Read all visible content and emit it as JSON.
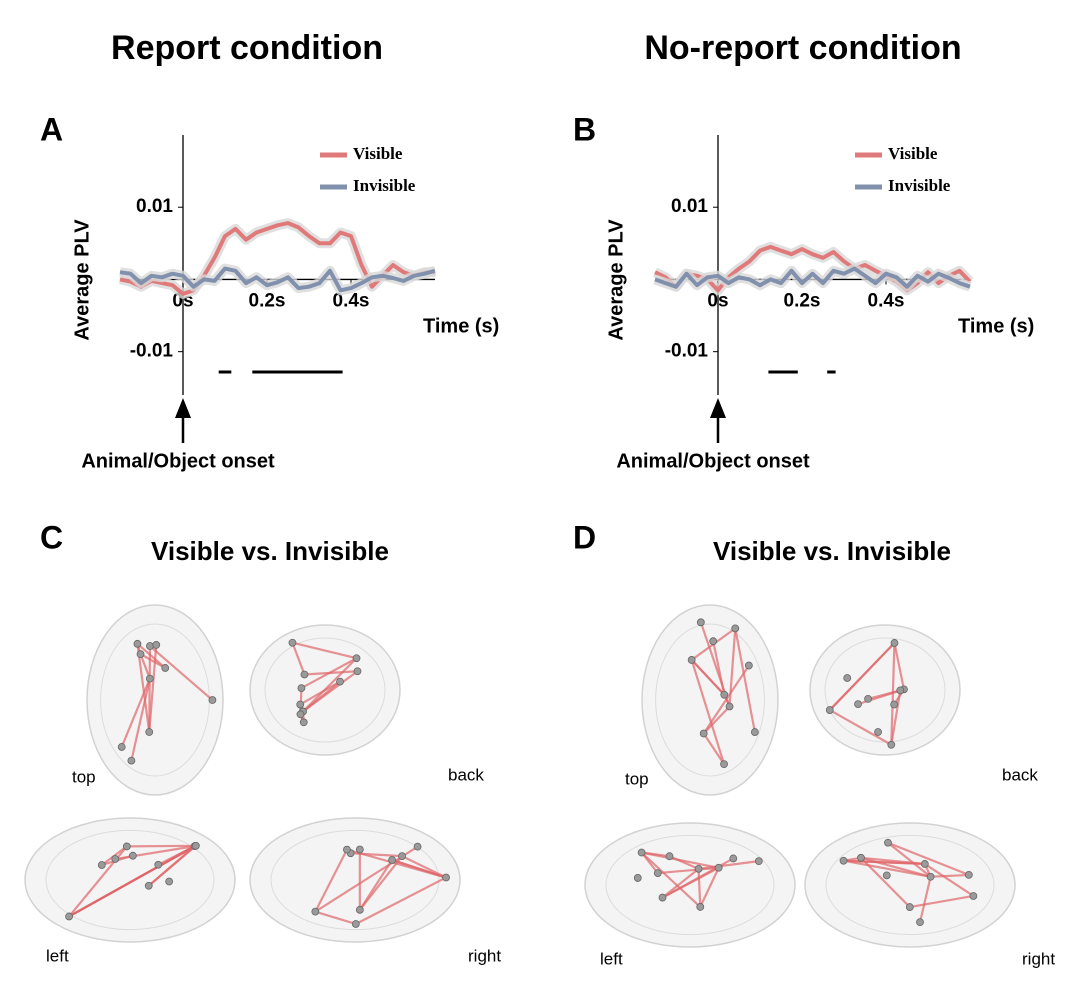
{
  "headings": [
    "Report condition",
    "No-report condition"
  ],
  "chart_data": [
    {
      "type": "line",
      "panel": "A",
      "ylabel": "Average PLV",
      "xlabel": "Time (s)",
      "annotation": "Animal/Object onset",
      "x": [
        -0.15,
        -0.125,
        -0.1,
        -0.075,
        -0.05,
        -0.025,
        0,
        0.025,
        0.05,
        0.075,
        0.1,
        0.125,
        0.15,
        0.175,
        0.2,
        0.225,
        0.25,
        0.275,
        0.3,
        0.325,
        0.35,
        0.375,
        0.4,
        0.425,
        0.45,
        0.475,
        0.5,
        0.525,
        0.55,
        0.575,
        0.6
      ],
      "series": [
        {
          "name": "Visible",
          "color": "#e07a7a",
          "values": [
            0,
            -0.0003,
            -0.001,
            -0.0002,
            -0.0005,
            -0.0008,
            -0.002,
            -0.0015,
            0.0005,
            0.003,
            0.006,
            0.007,
            0.0055,
            0.0065,
            0.007,
            0.0075,
            0.0078,
            0.0072,
            0.006,
            0.005,
            0.005,
            0.0065,
            0.006,
            0.002,
            -0.001,
            0.0005,
            0.002,
            0.001,
            0.0005,
            0.001,
            0.001
          ]
        },
        {
          "name": "Invisible",
          "color": "#8090ad",
          "values": [
            0.001,
            0.0008,
            -0.0005,
            0.0005,
            0.0003,
            0.0008,
            0.0005,
            -0.001,
            0,
            -0.0002,
            0.0015,
            0.0012,
            -0.0005,
            0.0003,
            -0.0008,
            -0.0004,
            0.0003,
            -0.0012,
            -0.001,
            -0.0005,
            0.0012,
            -0.0015,
            -0.0012,
            -0.0005,
            0.0003,
            0.0005,
            0.0002,
            -0.0002,
            0.0005,
            0.0008,
            0.0012
          ]
        }
      ],
      "significant_intervals": [
        [
          0.085,
          0.115
        ],
        [
          0.165,
          0.38
        ]
      ],
      "xlim": [
        -0.15,
        0.6
      ],
      "ylim": [
        -0.016,
        0.02
      ],
      "xticks": [
        {
          "value": 0,
          "label": "0s"
        },
        {
          "value": 0.2,
          "label": "0.2s"
        },
        {
          "value": 0.4,
          "label": "0.4s"
        }
      ],
      "yticks": [
        0.01,
        -0.01
      ]
    },
    {
      "type": "line",
      "panel": "B",
      "ylabel": "Average PLV",
      "xlabel": "Time (s)",
      "annotation": "Animal/Object onset",
      "x": [
        -0.15,
        -0.125,
        -0.1,
        -0.075,
        -0.05,
        -0.025,
        0,
        0.025,
        0.05,
        0.075,
        0.1,
        0.125,
        0.15,
        0.175,
        0.2,
        0.225,
        0.25,
        0.275,
        0.3,
        0.325,
        0.35,
        0.375,
        0.4,
        0.425,
        0.45,
        0.475,
        0.5,
        0.525,
        0.55,
        0.575,
        0.6
      ],
      "series": [
        {
          "name": "Visible",
          "color": "#e07a7a",
          "values": [
            0.001,
            0.0003,
            -0.001,
            0.0008,
            0.0005,
            0,
            -0.0015,
            0.0003,
            0.0015,
            0.0025,
            0.004,
            0.0045,
            0.004,
            0.0035,
            0.0042,
            0.0035,
            0.003,
            0.0038,
            0.0025,
            0.0015,
            0.002,
            0.0012,
            0.0005,
            -0.0003,
            -0.0015,
            -0.0005,
            0.001,
            -0.0005,
            0.0005,
            0.0012,
            -0.0003
          ]
        },
        {
          "name": "Invisible",
          "color": "#8090ad",
          "values": [
            0,
            -0.0005,
            -0.001,
            0.0008,
            -0.0008,
            0.0003,
            0.0005,
            -0.0005,
            0.0003,
            0,
            -0.0008,
            0,
            -0.0005,
            0.0012,
            -0.0005,
            0.0008,
            -0.0005,
            0.0012,
            0.0008,
            0.0015,
            0.0005,
            -0.0005,
            0.0008,
            0.0003,
            -0.001,
            0.0005,
            -0.0003,
            0.0008,
            0.0002,
            -0.0005,
            -0.001
          ]
        }
      ],
      "significant_intervals": [
        [
          0.12,
          0.19
        ],
        [
          0.26,
          0.28
        ]
      ],
      "xlim": [
        -0.15,
        0.6
      ],
      "ylim": [
        -0.016,
        0.02
      ],
      "xticks": [
        {
          "value": 0,
          "label": "0s"
        },
        {
          "value": 0.2,
          "label": "0.2s"
        },
        {
          "value": 0.4,
          "label": "0.4s"
        }
      ],
      "yticks": [
        0.01,
        -0.01
      ]
    }
  ],
  "brain_panels": [
    {
      "letter": "C",
      "title": "Visible vs. Invisible",
      "views": [
        "top",
        "back",
        "left",
        "right"
      ]
    },
    {
      "letter": "D",
      "title": "Visible vs. Invisible",
      "views": [
        "top",
        "back",
        "left",
        "right"
      ]
    }
  ]
}
